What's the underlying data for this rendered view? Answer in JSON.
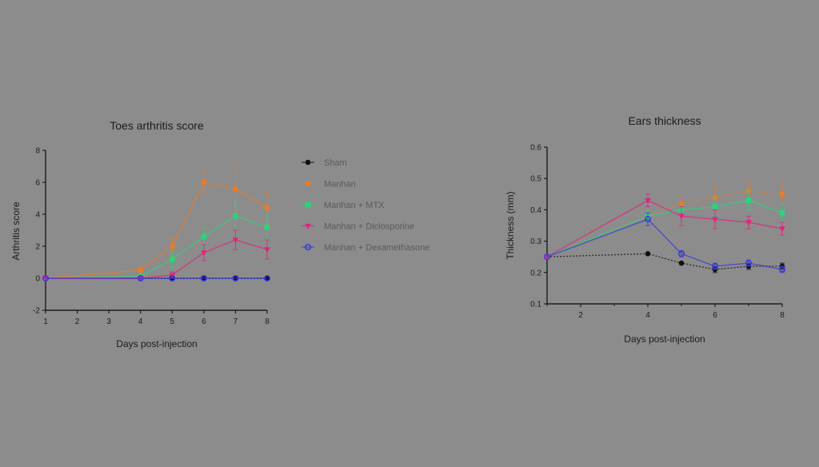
{
  "colors": {
    "background": "#8c8c8c",
    "axis": "#1c1c1c",
    "Sham": "#111111",
    "Manhan": "#f07a22",
    "Manhan + MTX": "#2bd47c",
    "Manhan + Diclosporine": "#e2237e",
    "Manhan + Dexamethasone": "#3a3ad8"
  },
  "legend": [
    {
      "name": "Sham",
      "marker": "circle"
    },
    {
      "name": "Manhan",
      "marker": "circle"
    },
    {
      "name": "Manhan + MTX",
      "marker": "square"
    },
    {
      "name": "Manhan + Diclosporine",
      "marker": "triangle-down"
    },
    {
      "name": "Manhan + Dexamethasone",
      "marker": "open-circle"
    }
  ],
  "chart_data": [
    {
      "type": "line",
      "title": "Toes arthritis score",
      "xlabel": "Days post-injection",
      "ylabel": "Arthritis score",
      "xlim": [
        1,
        8
      ],
      "ylim": [
        -2,
        8
      ],
      "xticks": [
        1,
        2,
        3,
        4,
        5,
        6,
        7,
        8
      ],
      "yticks": [
        -2,
        0,
        2,
        4,
        6,
        8
      ],
      "grid": false,
      "legend_position": "right",
      "series": [
        {
          "name": "Sham",
          "x": [
            1,
            4,
            5,
            6,
            7,
            8
          ],
          "y": [
            0,
            0,
            0,
            0,
            0,
            0
          ],
          "err": [
            0,
            0,
            0,
            0,
            0,
            0
          ],
          "line": "dotted"
        },
        {
          "name": "Manhan",
          "x": [
            1,
            4,
            5,
            6,
            7,
            8
          ],
          "y": [
            0,
            0.5,
            2.0,
            6.0,
            5.6,
            4.4
          ],
          "err": [
            0,
            0.2,
            0.6,
            0.7,
            1.3,
            1.0
          ],
          "line": "solid"
        },
        {
          "name": "Manhan + MTX",
          "x": [
            1,
            4,
            5,
            6,
            7,
            8
          ],
          "y": [
            0,
            0.1,
            1.2,
            2.6,
            3.9,
            3.2
          ],
          "err": [
            0,
            0.1,
            0.5,
            0.6,
            0.7,
            0.8
          ],
          "line": "solid"
        },
        {
          "name": "Manhan + Diclosporine",
          "x": [
            1,
            4,
            5,
            6,
            7,
            8
          ],
          "y": [
            0,
            0,
            0.2,
            1.6,
            2.4,
            1.8
          ],
          "err": [
            0,
            0,
            0.2,
            0.5,
            0.6,
            0.6
          ],
          "line": "solid"
        },
        {
          "name": "Manhan + Dexamethasone",
          "x": [
            1,
            4,
            5,
            6,
            7,
            8
          ],
          "y": [
            0,
            0,
            0,
            0,
            0,
            0
          ],
          "err": [
            0,
            0,
            0,
            0,
            0,
            0
          ],
          "line": "solid"
        }
      ]
    },
    {
      "type": "line",
      "title": "Ears thickness",
      "xlabel": "Days post-injection",
      "ylabel": "Thickness (mm)",
      "xlim": [
        1,
        8
      ],
      "ylim": [
        0.1,
        0.6
      ],
      "xticks": [
        2,
        4,
        6,
        8
      ],
      "yticks": [
        0.1,
        0.2,
        0.3,
        0.4,
        0.5,
        0.6
      ],
      "grid": false,
      "series": [
        {
          "name": "Sham",
          "x": [
            1,
            4,
            5,
            6,
            7,
            8
          ],
          "y": [
            0.25,
            0.26,
            0.23,
            0.21,
            0.22,
            0.22
          ],
          "err": [
            0,
            0,
            0,
            0.01,
            0.01,
            0.01
          ],
          "line": "dotted"
        },
        {
          "name": "Manhan",
          "x": [
            1,
            4,
            5,
            6,
            7,
            8
          ],
          "y": [
            0.25,
            0.38,
            0.42,
            0.44,
            0.46,
            0.45
          ],
          "err": [
            0,
            0.02,
            0.02,
            0.04,
            0.03,
            0.03
          ],
          "line": "dotted"
        },
        {
          "name": "Manhan + MTX",
          "x": [
            1,
            4,
            5,
            6,
            7,
            8
          ],
          "y": [
            0.25,
            0.38,
            0.4,
            0.41,
            0.43,
            0.39
          ],
          "err": [
            0,
            0.02,
            0.02,
            0.03,
            0.03,
            0.03
          ],
          "line": "solid"
        },
        {
          "name": "Manhan + Diclosporine",
          "x": [
            1,
            4,
            5,
            6,
            7,
            8
          ],
          "y": [
            0.25,
            0.43,
            0.38,
            0.37,
            0.36,
            0.34
          ],
          "err": [
            0,
            0.02,
            0.03,
            0.03,
            0.02,
            0.02
          ],
          "line": "solid"
        },
        {
          "name": "Manhan + Dexamethasone",
          "x": [
            1,
            4,
            5,
            6,
            7,
            8
          ],
          "y": [
            0.25,
            0.37,
            0.26,
            0.22,
            0.23,
            0.21
          ],
          "err": [
            0,
            0.02,
            0.01,
            0.01,
            0.01,
            0.01
          ],
          "line": "solid"
        }
      ]
    }
  ]
}
